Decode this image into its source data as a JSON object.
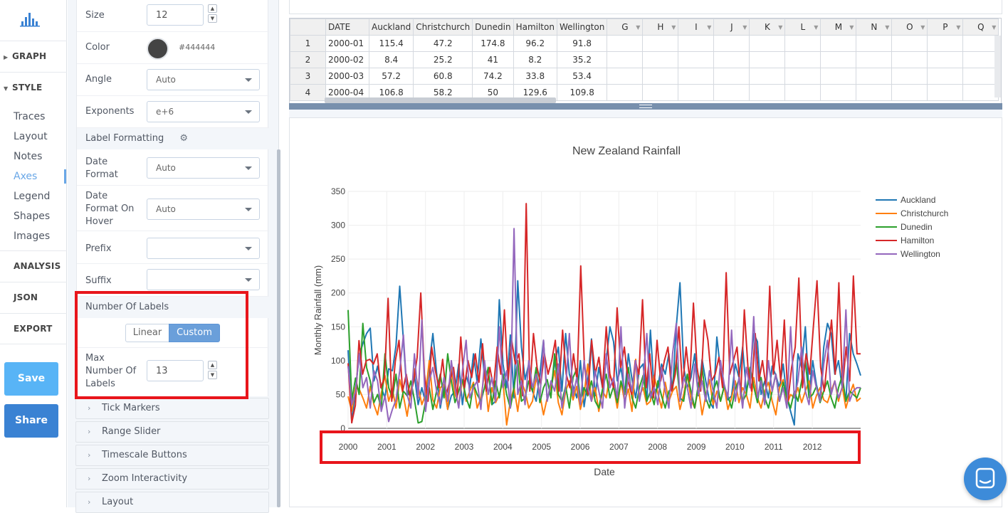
{
  "nav": {
    "logo_icon": "plotly-bars-icon",
    "graph": "GRAPH",
    "style": "STYLE",
    "style_items": [
      "Traces",
      "Layout",
      "Notes",
      "Axes",
      "Legend",
      "Shapes",
      "Images"
    ],
    "active_item": "Axes",
    "analysis": "ANALYSIS",
    "json": "JSON",
    "export": "EXPORT",
    "save": "Save",
    "share": "Share",
    "colors": {
      "save": "#58b4f6",
      "share": "#3a82d3",
      "active": "#69a7e7"
    }
  },
  "panel": {
    "size_label": "Size",
    "size_value": "12",
    "color_label": "Color",
    "color_value": "#444444",
    "angle_label": "Angle",
    "angle_value": "Auto",
    "exponents_label": "Exponents",
    "exponents_value": "e+6",
    "label_formatting": "Label Formatting",
    "date_format_label": "Date Format",
    "date_format_value": "Auto",
    "date_hover_label": "Date Format On Hover",
    "date_hover_value": "Auto",
    "prefix_label": "Prefix",
    "prefix_value": "",
    "suffix_label": "Suffix",
    "suffix_value": "",
    "num_labels_header": "Number Of Labels",
    "toggle": [
      "Linear",
      "Custom"
    ],
    "toggle_active": "Custom",
    "max_labels_label": "Max Number Of Labels",
    "max_labels_value": "13",
    "collapsed_sections": [
      "Tick Markers",
      "Range Slider",
      "Timescale Buttons",
      "Zoom Interactivity",
      "Layout"
    ]
  },
  "grid": {
    "columns": [
      "DATE",
      "Auckland",
      "Christchurch",
      "Dunedin",
      "Hamilton",
      "Wellington",
      "G",
      "H",
      "I",
      "J",
      "K",
      "L",
      "M",
      "N",
      "O",
      "P",
      "Q"
    ],
    "rows": [
      [
        "1",
        "2000-01",
        "115.4",
        "47.2",
        "174.8",
        "96.2",
        "91.8"
      ],
      [
        "2",
        "2000-02",
        "8.4",
        "25.2",
        "41",
        "8.2",
        "35.2"
      ],
      [
        "3",
        "2000-03",
        "57.2",
        "60.8",
        "74.2",
        "33.8",
        "53.4"
      ],
      [
        "4",
        "2000-04",
        "106.8",
        "58.2",
        "50",
        "129.6",
        "109.8"
      ]
    ]
  },
  "chart_data": {
    "type": "line",
    "title": "New Zealand Rainfall",
    "xlabel": "Date",
    "ylabel": "Monthly Rainfall (mm)",
    "ylim": [
      0,
      350
    ],
    "yticks": [
      "0",
      "50",
      "100",
      "150",
      "200",
      "250",
      "300",
      "350"
    ],
    "xticks": [
      "2000",
      "2001",
      "2002",
      "2003",
      "2004",
      "2005",
      "2006",
      "2007",
      "2008",
      "2009",
      "2010",
      "2011",
      "2012"
    ],
    "xrange": [
      "2000-01",
      "2013-04"
    ],
    "grid": true,
    "legend_position": "top-right",
    "series": [
      {
        "name": "Auckland",
        "color": "#1f77b4",
        "values": [
          115.4,
          8.4,
          57.2,
          106.8,
          125,
          140,
          148,
          70,
          92,
          60,
          45,
          88,
          85,
          122,
          210,
          130,
          48,
          55,
          78,
          35,
          60,
          38,
          95,
          140,
          82,
          30,
          62,
          28,
          48,
          55,
          95,
          35,
          78,
          60,
          110,
          68,
          132,
          75,
          88,
          35,
          40,
          190,
          95,
          60,
          138,
          45,
          218,
          120,
          72,
          95,
          55,
          40,
          80,
          130,
          42,
          60,
          95,
          120,
          55,
          140,
          80,
          62,
          45,
          100,
          32,
          70,
          132,
          48,
          90,
          60,
          100,
          150,
          128,
          70,
          90,
          52,
          110,
          72,
          45,
          88,
          95,
          40,
          145,
          55,
          60,
          95,
          80,
          110,
          55,
          150,
          215,
          90,
          60,
          75,
          110,
          48,
          102,
          70,
          40,
          30,
          135,
          85,
          62,
          42,
          48,
          95,
          75,
          120,
          55,
          78,
          140,
          128,
          50,
          70,
          45,
          92,
          78,
          60,
          95,
          45,
          25,
          5,
          110,
          90,
          150,
          52,
          100,
          65,
          42,
          120,
          155,
          140,
          80,
          100,
          60,
          40,
          140,
          110,
          95,
          78
        ]
      },
      {
        "name": "Christchurch",
        "color": "#ff7f0e",
        "values": [
          47.2,
          25.2,
          60.8,
          58.2,
          45,
          30,
          62,
          35,
          20,
          52,
          78,
          40,
          58,
          30,
          72,
          48,
          18,
          55,
          88,
          62,
          35,
          50,
          100,
          42,
          30,
          60,
          65,
          28,
          88,
          50,
          35,
          72,
          40,
          55,
          68,
          30,
          45,
          82,
          25,
          60,
          38,
          50,
          70,
          5,
          40,
          60,
          25,
          68,
          55,
          30,
          40,
          75,
          50,
          20,
          45,
          60,
          85,
          38,
          20,
          55,
          70,
          42,
          62,
          28,
          50,
          95,
          40,
          60,
          25,
          55,
          45,
          80,
          62,
          30,
          68,
          40,
          58,
          25,
          102,
          48,
          60,
          35,
          40,
          78,
          52,
          30,
          68,
          40,
          55,
          62,
          28,
          50,
          80,
          42,
          30,
          60,
          20,
          48,
          72,
          35,
          55,
          40,
          62,
          28,
          45,
          70,
          38,
          60,
          50,
          30,
          75,
          45,
          30,
          55,
          68,
          40,
          20,
          60,
          72,
          35,
          50,
          45,
          60,
          38,
          55,
          70,
          30,
          48,
          60,
          42,
          38,
          55,
          70,
          40,
          62,
          30,
          50,
          65,
          40,
          45
        ]
      },
      {
        "name": "Dunedin",
        "color": "#2ca02c",
        "values": [
          174.8,
          41,
          74.2,
          50,
          155,
          90,
          70,
          38,
          50,
          30,
          110,
          60,
          45,
          80,
          30,
          55,
          48,
          70,
          42,
          8,
          10,
          40,
          60,
          28,
          55,
          80,
          45,
          110,
          70,
          38,
          55,
          72,
          45,
          30,
          65,
          50,
          40,
          60,
          90,
          35,
          70,
          45,
          80,
          50,
          30,
          60,
          100,
          40,
          45,
          70,
          55,
          90,
          38,
          60,
          72,
          45,
          110,
          50,
          40,
          62,
          30,
          75,
          88,
          42,
          60,
          48,
          70,
          40,
          30,
          58,
          80,
          45,
          62,
          38,
          70,
          50,
          90,
          45,
          30,
          60,
          78,
          40,
          55,
          35,
          70,
          48,
          30,
          55,
          60,
          100,
          45,
          40,
          80,
          55,
          30,
          65,
          90,
          45,
          30,
          55,
          70,
          40,
          62,
          48,
          30,
          58,
          72,
          40,
          50,
          90,
          62,
          38,
          75,
          45,
          30,
          55,
          80,
          40,
          68,
          45,
          30,
          55,
          40,
          70,
          100,
          45,
          50,
          62,
          38,
          55,
          70,
          45,
          30,
          60,
          78,
          40,
          55,
          50,
          45,
          60
        ]
      },
      {
        "name": "Hamilton",
        "color": "#d62728",
        "values": [
          96.2,
          8.2,
          33.8,
          129.6,
          80,
          100,
          102,
          95,
          110,
          60,
          75,
          192,
          40,
          100,
          130,
          55,
          80,
          48,
          68,
          105,
          200,
          80,
          40,
          120,
          85,
          60,
          102,
          50,
          70,
          90,
          45,
          135,
          60,
          100,
          75,
          110,
          68,
          125,
          55,
          90,
          60,
          120,
          80,
          175,
          70,
          130,
          95,
          110,
          48,
          332,
          55,
          140,
          90,
          65,
          110,
          80,
          100,
          130,
          55,
          145,
          80,
          60,
          110,
          70,
          240,
          95,
          50,
          130,
          80,
          105,
          60,
          150,
          80,
          60,
          178,
          90,
          120,
          70,
          50,
          100,
          80,
          190,
          60,
          110,
          45,
          130,
          70,
          100,
          120,
          55,
          80,
          150,
          60,
          120,
          70,
          185,
          90,
          55,
          160,
          130,
          70,
          80,
          105,
          60,
          230,
          80,
          100,
          120,
          48,
          175,
          90,
          55,
          140,
          70,
          100,
          60,
          210,
          80,
          130,
          70,
          160,
          40,
          90,
          120,
          222,
          60,
          110,
          80,
          150,
          218,
          90,
          55,
          110,
          160,
          80,
          215,
          60,
          120,
          70,
          225,
          110,
          110
        ]
      },
      {
        "name": "Wellington",
        "color": "#9467bd",
        "values": [
          91.8,
          35.2,
          53.4,
          109.8,
          60,
          75,
          30,
          85,
          70,
          25,
          48,
          10,
          28,
          42,
          85,
          138,
          50,
          30,
          110,
          45,
          160,
          25,
          70,
          90,
          55,
          35,
          75,
          40,
          100,
          60,
          30,
          85,
          130,
          45,
          60,
          70,
          28,
          100,
          50,
          75,
          40,
          150,
          60,
          85,
          30,
          295,
          50,
          70,
          35,
          100,
          60,
          80,
          45,
          130,
          40,
          70,
          55,
          95,
          30,
          60,
          140,
          48,
          75,
          35,
          100,
          60,
          40,
          85,
          55,
          30,
          110,
          60,
          75,
          45,
          150,
          30,
          80,
          55,
          100,
          40,
          70,
          140,
          45,
          60,
          35,
          90,
          55,
          30,
          110,
          155,
          40,
          75,
          60,
          30,
          95,
          50,
          70,
          40,
          85,
          55,
          30,
          100,
          65,
          45,
          145,
          40,
          75,
          30,
          90,
          60,
          165,
          45,
          70,
          35,
          100,
          55,
          80,
          40,
          60,
          30,
          150,
          45,
          70,
          120,
          55,
          35,
          85,
          60,
          40,
          95,
          130,
          50,
          70,
          45,
          60,
          175,
          40,
          55,
          60,
          60
        ]
      }
    ]
  }
}
